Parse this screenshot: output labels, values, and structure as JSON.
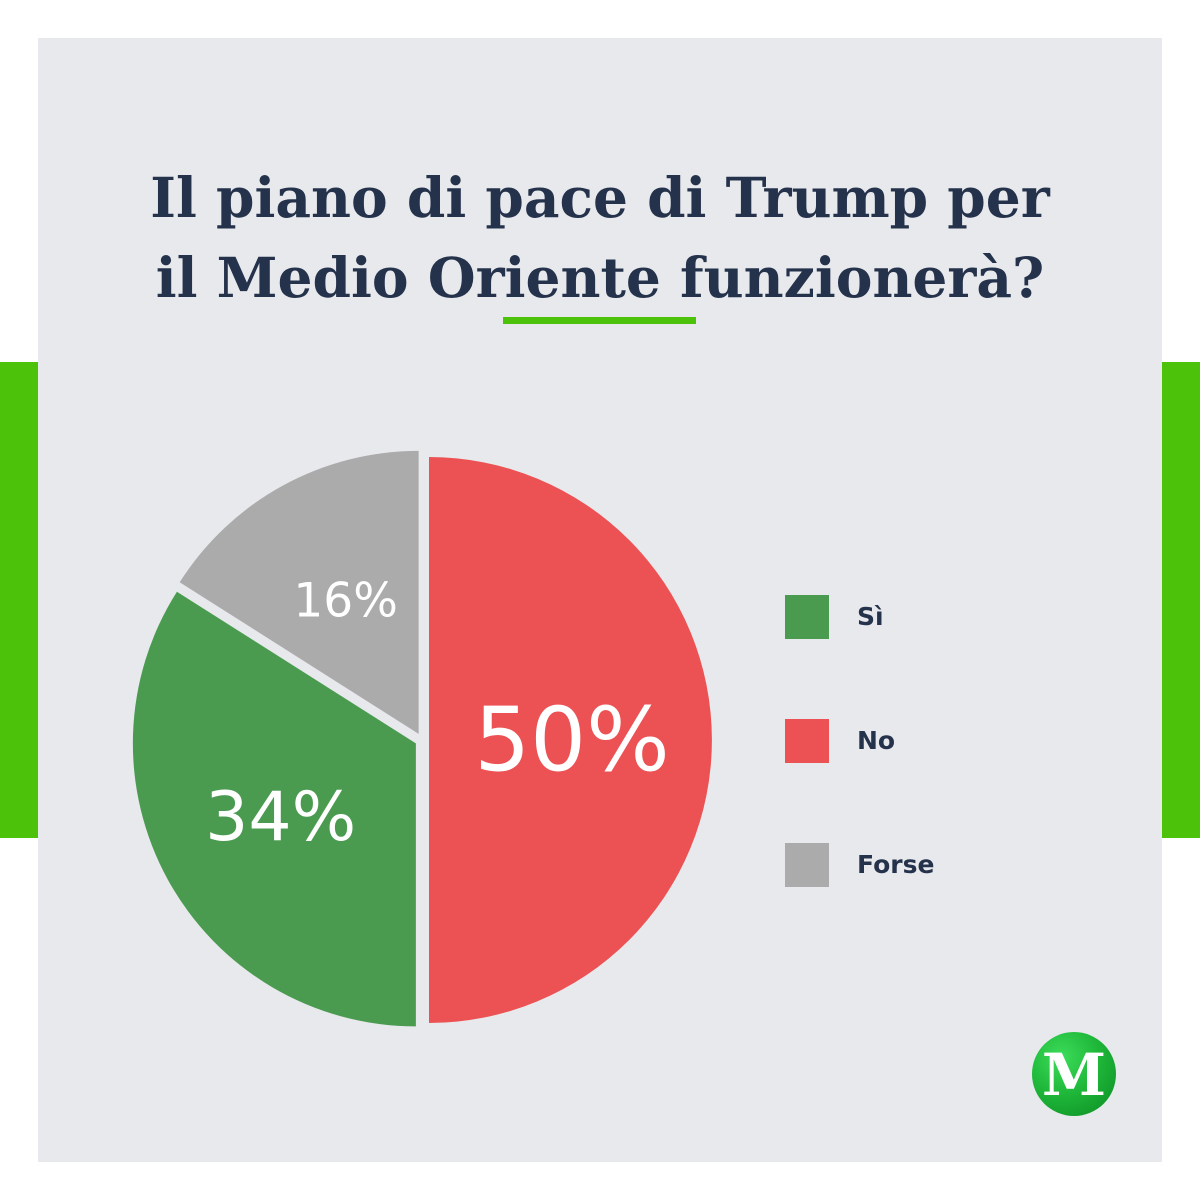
{
  "header": {
    "title_line1": "Il piano di pace di Trump per",
    "title_line2": "il Medio Oriente funzionerà?"
  },
  "accent_color": "#4cc20a",
  "title_color": "#25324b",
  "chart_data": {
    "type": "pie",
    "categories": [
      "No",
      "Sì",
      "Forse"
    ],
    "values": [
      50,
      34,
      16
    ],
    "labels": [
      "50%",
      "34%",
      "16%"
    ],
    "colors": [
      "#ec5254",
      "#4a9b50",
      "#ababab"
    ],
    "legend": [
      {
        "label": "Sì",
        "color": "#4a9b50"
      },
      {
        "label": "No",
        "color": "#ec5254"
      },
      {
        "label": "Forse",
        "color": "#ababab"
      }
    ],
    "legend_position": "right"
  },
  "logo": {
    "letter": "M",
    "icon": "brand-m-logo"
  }
}
